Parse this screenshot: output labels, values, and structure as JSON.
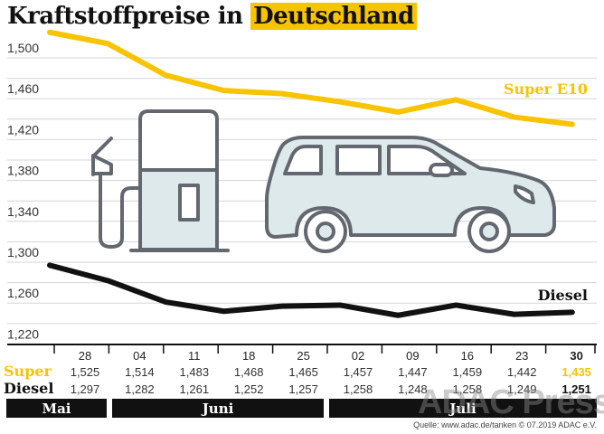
{
  "title_part1": "Kraftstoffpreise in",
  "title_part2": "Deutschland",
  "source": "Quelle: www.adac.de/tanken   © 07.2019  ADAC e.V.",
  "watermark": "ADAC Presse",
  "colors": {
    "super": "#f8c300",
    "diesel": "#111111",
    "icon_fill": "#dde9ea",
    "icon_stroke": "#636870",
    "grid": "#d5d5d5"
  },
  "icons": [
    "gas-pump-icon",
    "car-icon"
  ],
  "chart_data": {
    "type": "line",
    "categories": [
      "28",
      "04",
      "11",
      "18",
      "25",
      "02",
      "09",
      "16",
      "23",
      "30"
    ],
    "months": [
      {
        "label": "Mai"
      },
      {
        "label": "Juni"
      },
      {
        "label": "Juli"
      }
    ],
    "y_ticks": [
      "1,500",
      "1,460",
      "1,420",
      "1,380",
      "1,340",
      "1,300",
      "1,260",
      "1,220"
    ],
    "y_tick_values": [
      1.5,
      1.46,
      1.42,
      1.38,
      1.34,
      1.3,
      1.26,
      1.22
    ],
    "ylim": [
      1.22,
      1.53
    ],
    "grid": true,
    "series": [
      {
        "name": "Super E10",
        "row_label": "Super",
        "values": [
          1.525,
          1.514,
          1.483,
          1.468,
          1.465,
          1.457,
          1.447,
          1.459,
          1.442,
          1.435
        ],
        "labels": [
          "1,525",
          "1,514",
          "1,483",
          "1,468",
          "1,465",
          "1,457",
          "1,447",
          "1,459",
          "1,442",
          "1,435"
        ]
      },
      {
        "name": "Diesel",
        "row_label": "Diesel",
        "values": [
          1.297,
          1.282,
          1.261,
          1.252,
          1.257,
          1.258,
          1.248,
          1.258,
          1.249,
          1.251
        ],
        "labels": [
          "1,297",
          "1,282",
          "1,261",
          "1,252",
          "1,257",
          "1,258",
          "1,248",
          "1,258",
          "1,249",
          "1,251"
        ]
      }
    ]
  }
}
